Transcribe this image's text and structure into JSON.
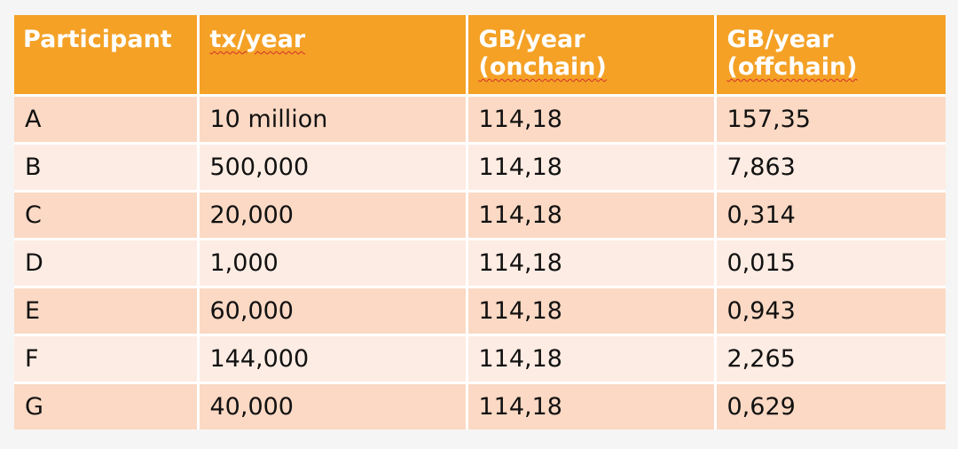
{
  "table": {
    "headers": [
      {
        "line1": "Participant",
        "line2": ""
      },
      {
        "line1": "tx/year",
        "line2": ""
      },
      {
        "line1": "GB/year",
        "line2": "(onchain)"
      },
      {
        "line1": "GB/year",
        "line2": "(offchain)"
      }
    ],
    "rows": [
      [
        "A",
        "10 million",
        "114,18",
        "157,35"
      ],
      [
        "B",
        "500,000",
        "114,18",
        "7,863"
      ],
      [
        "C",
        "20,000",
        "114,18",
        "0,314"
      ],
      [
        "D",
        "1,000",
        "114,18",
        "0,015"
      ],
      [
        "E",
        "60,000",
        "114,18",
        "0,943"
      ],
      [
        "F",
        "144,000",
        "114,18",
        "2,265"
      ],
      [
        "G",
        "40,000",
        "114,18",
        "0,629"
      ]
    ]
  },
  "colors": {
    "header_bg": "#f4a126",
    "row_odd_bg": "#fbd9c4",
    "row_even_bg": "#fdece3"
  }
}
